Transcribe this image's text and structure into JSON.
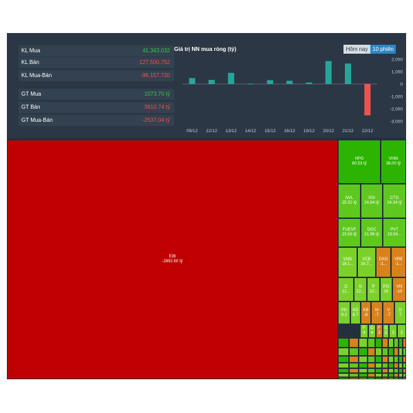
{
  "stats": [
    {
      "label": "KL Mua",
      "value": "41.343.032",
      "color": "#2ecc40"
    },
    {
      "label": "KL Bán",
      "value": "127.500.752",
      "color": "#ff4d4d"
    },
    {
      "label": "KL Mua-Bán",
      "value": "-86.157.720",
      "color": "#ff4d4d"
    },
    {
      "label": "GT Mua",
      "value": "1073.70 tỷ",
      "color": "#2ecc40"
    },
    {
      "label": "GT Bán",
      "value": "3610.74 tỷ",
      "color": "#ff4d4d"
    },
    {
      "label": "GT Mua-Bán",
      "value": "-2537.04 tỷ",
      "color": "#ff4d4d"
    }
  ],
  "chart_title": "Giá trị NN mua ròng (tỷ)",
  "tabs": {
    "today": "Hôm nay",
    "ten_sessions": "10 phiên"
  },
  "colors": {
    "positive_bar": "#26a69a",
    "negative_bar": "#ef5350",
    "strong_red": "#c00000",
    "green_dark": "#2db400",
    "green": "#5ec81e",
    "green_light": "#7bd12a",
    "orange": "#d9821c"
  },
  "chart_data": {
    "type": "bar",
    "title": "Giá trị NN mua ròng (tỷ)",
    "categories": [
      "09/12",
      "12/12",
      "13/12",
      "14/12",
      "15/12",
      "16/12",
      "19/12",
      "20/12",
      "21/12",
      "22/12"
    ],
    "values": [
      480,
      330,
      900,
      20,
      310,
      260,
      120,
      1850,
      1650,
      -2537
    ],
    "yticks": [
      "2,000",
      "1,000",
      "0",
      "-1,000",
      "-2,000",
      "-3,000"
    ],
    "ylim": [
      -3000,
      2000
    ],
    "grid": false,
    "legend": "none"
  },
  "treemap": {
    "eib": {
      "ticker": "EIB",
      "value": "-2892.60 tỷ"
    },
    "tiles": [
      {
        "t": "HPG",
        "v": "60.53 tỷ"
      },
      {
        "t": "VHM",
        "v": "38.00 tỷ"
      },
      {
        "t": "NVL",
        "v": "25.52 tỷ"
      },
      {
        "t": "SSI",
        "v": "24.84 tỷ"
      },
      {
        "t": "CTG",
        "v": "24.34 tỷ"
      },
      {
        "t": "FUEVF",
        "v": "23.56 tỷ"
      },
      {
        "t": "DGC",
        "v": "21.96 tỷ"
      },
      {
        "t": "PVT",
        "v": "19.54..."
      },
      {
        "t": "VND",
        "v": "18.1..."
      },
      {
        "t": "VCB",
        "v": "16.7..."
      },
      {
        "t": "DXG",
        "v": "-1..."
      },
      {
        "t": "VRE",
        "v": "-1..."
      },
      {
        "t": "D",
        "v": "12..."
      },
      {
        "t": "N",
        "v": "12..."
      },
      {
        "t": "P",
        "v": "12..."
      },
      {
        "t": "PO",
        "v": "10"
      },
      {
        "t": "VN",
        "v": "-10"
      },
      {
        "t": "PD",
        "v": "8.2"
      },
      {
        "t": "KD",
        "v": "8.7"
      },
      {
        "t": "KB",
        "v": "-8"
      },
      {
        "t": "M",
        "v": "-7"
      },
      {
        "t": "V",
        "v": "-7"
      },
      {
        "t": "D",
        "v": "7"
      },
      {
        "t": "F",
        "v": "4"
      },
      {
        "t": "G",
        "v": "4"
      },
      {
        "t": "F",
        "v": "3"
      },
      {
        "t": "S",
        "v": "3"
      },
      {
        "t": "",
        "v": "3"
      },
      {
        "t": "",
        "v": "3"
      }
    ]
  }
}
